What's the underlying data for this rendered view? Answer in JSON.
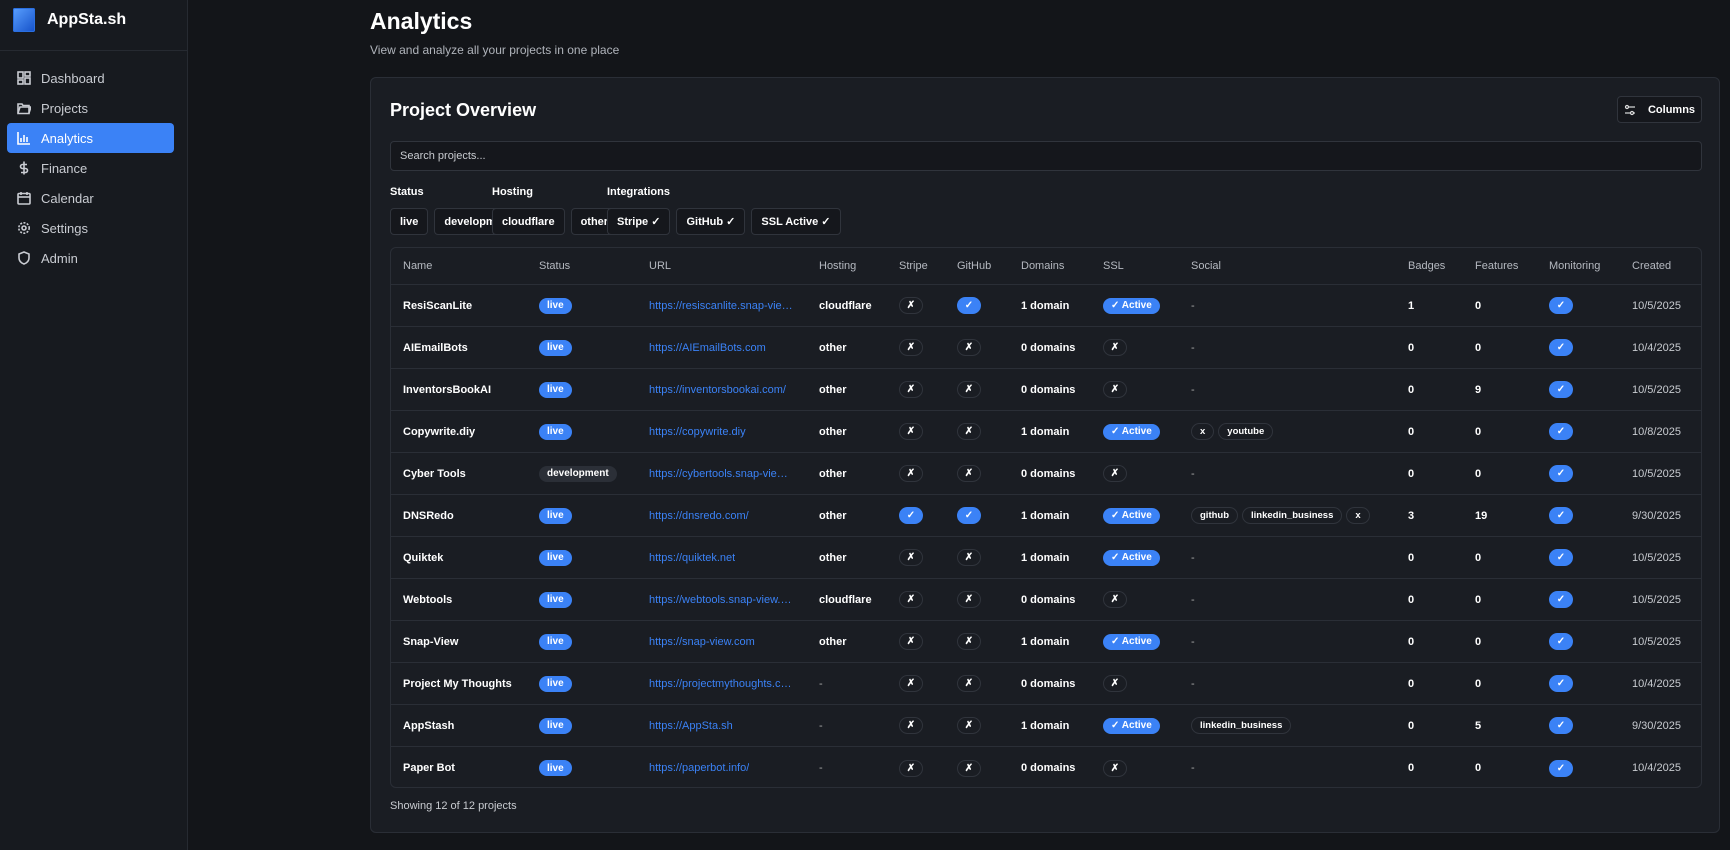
{
  "app": {
    "name": "AppSta.sh"
  },
  "sidebar": {
    "items": [
      {
        "label": "Dashboard",
        "icon": "dashboard-icon"
      },
      {
        "label": "Projects",
        "icon": "folder-icon"
      },
      {
        "label": "Analytics",
        "icon": "bar-chart-icon",
        "active": true
      },
      {
        "label": "Finance",
        "icon": "dollar-icon"
      },
      {
        "label": "Calendar",
        "icon": "calendar-icon"
      },
      {
        "label": "Settings",
        "icon": "gear-icon"
      },
      {
        "label": "Admin",
        "icon": "shield-icon"
      }
    ]
  },
  "header": {
    "title": "Analytics",
    "subtitle": "View and analyze all your projects in one place"
  },
  "card": {
    "title": "Project Overview",
    "columns_label": "Columns",
    "search_placeholder": "Search projects...",
    "footer": "Showing 12 of 12 projects"
  },
  "filters": [
    {
      "label": "Status",
      "options": [
        "live",
        "development"
      ]
    },
    {
      "label": "Hosting",
      "options": [
        "cloudflare",
        "other"
      ]
    },
    {
      "label": "Integrations",
      "options": [
        "Stripe ✓",
        "GitHub ✓",
        "SSL Active ✓"
      ]
    }
  ],
  "table": {
    "columns": [
      "Name",
      "Status",
      "URL",
      "Hosting",
      "Stripe",
      "GitHub",
      "Domains",
      "SSL",
      "Social",
      "Badges",
      "Features",
      "Monitoring",
      "Created"
    ],
    "ssl_active_label": "✓ Active",
    "rows": [
      {
        "name": "ResiScanLite",
        "status": "live",
        "url": "https://resiscanlite.snap-view.com",
        "hosting": "cloudflare",
        "stripe": false,
        "github": true,
        "domains": "1 domain",
        "ssl": true,
        "social": [],
        "badges": "1",
        "features": "0",
        "monitoring": true,
        "created": "10/5/2025"
      },
      {
        "name": "AIEmailBots",
        "status": "live",
        "url": "https://AIEmailBots.com",
        "hosting": "other",
        "stripe": false,
        "github": false,
        "domains": "0 domains",
        "ssl": false,
        "social": [],
        "badges": "0",
        "features": "0",
        "monitoring": true,
        "created": "10/4/2025"
      },
      {
        "name": "InventorsBookAI",
        "status": "live",
        "url": "https://inventorsbookai.com/",
        "hosting": "other",
        "stripe": false,
        "github": false,
        "domains": "0 domains",
        "ssl": false,
        "social": [],
        "badges": "0",
        "features": "9",
        "monitoring": true,
        "created": "10/5/2025"
      },
      {
        "name": "Copywrite.diy",
        "status": "live",
        "url": "https://copywrite.diy",
        "hosting": "other",
        "stripe": false,
        "github": false,
        "domains": "1 domain",
        "ssl": true,
        "social": [
          "x",
          "youtube"
        ],
        "badges": "0",
        "features": "0",
        "monitoring": true,
        "created": "10/8/2025"
      },
      {
        "name": "Cyber Tools",
        "status": "development",
        "url": "https://cybertools.snap-view.com",
        "hosting": "other",
        "stripe": false,
        "github": false,
        "domains": "0 domains",
        "ssl": false,
        "social": [],
        "badges": "0",
        "features": "0",
        "monitoring": true,
        "created": "10/5/2025"
      },
      {
        "name": "DNSRedo",
        "status": "live",
        "url": "https://dnsredo.com/",
        "hosting": "other",
        "stripe": true,
        "github": true,
        "domains": "1 domain",
        "ssl": true,
        "social": [
          "github",
          "linkedin_business",
          "x"
        ],
        "badges": "3",
        "features": "19",
        "monitoring": true,
        "created": "9/30/2025"
      },
      {
        "name": "Quiktek",
        "status": "live",
        "url": "https://quiktek.net",
        "hosting": "other",
        "stripe": false,
        "github": false,
        "domains": "1 domain",
        "ssl": true,
        "social": [],
        "badges": "0",
        "features": "0",
        "monitoring": true,
        "created": "10/5/2025"
      },
      {
        "name": "Webtools",
        "status": "live",
        "url": "https://webtools.snap-view.com",
        "hosting": "cloudflare",
        "stripe": false,
        "github": false,
        "domains": "0 domains",
        "ssl": false,
        "social": [],
        "badges": "0",
        "features": "0",
        "monitoring": true,
        "created": "10/5/2025"
      },
      {
        "name": "Snap-View",
        "status": "live",
        "url": "https://snap-view.com",
        "hosting": "other",
        "stripe": false,
        "github": false,
        "domains": "1 domain",
        "ssl": true,
        "social": [],
        "badges": "0",
        "features": "0",
        "monitoring": true,
        "created": "10/5/2025"
      },
      {
        "name": "Project My Thoughts",
        "status": "live",
        "url": "https://projectmythoughts.com",
        "hosting": "-",
        "stripe": false,
        "github": false,
        "domains": "0 domains",
        "ssl": false,
        "social": [],
        "badges": "0",
        "features": "0",
        "monitoring": true,
        "created": "10/4/2025"
      },
      {
        "name": "AppStash",
        "status": "live",
        "url": "https://AppSta.sh",
        "hosting": "-",
        "stripe": false,
        "github": false,
        "domains": "1 domain",
        "ssl": true,
        "social": [
          "linkedin_business"
        ],
        "badges": "0",
        "features": "5",
        "monitoring": true,
        "created": "9/30/2025"
      },
      {
        "name": "Paper Bot",
        "status": "live",
        "url": "https://paperbot.info/",
        "hosting": "-",
        "stripe": false,
        "github": false,
        "domains": "0 domains",
        "ssl": false,
        "social": [],
        "badges": "0",
        "features": "0",
        "monitoring": true,
        "created": "10/4/2025"
      }
    ]
  },
  "colors": {
    "accent": "#3b82f6",
    "background": "#131519",
    "card": "#1a1d23"
  }
}
